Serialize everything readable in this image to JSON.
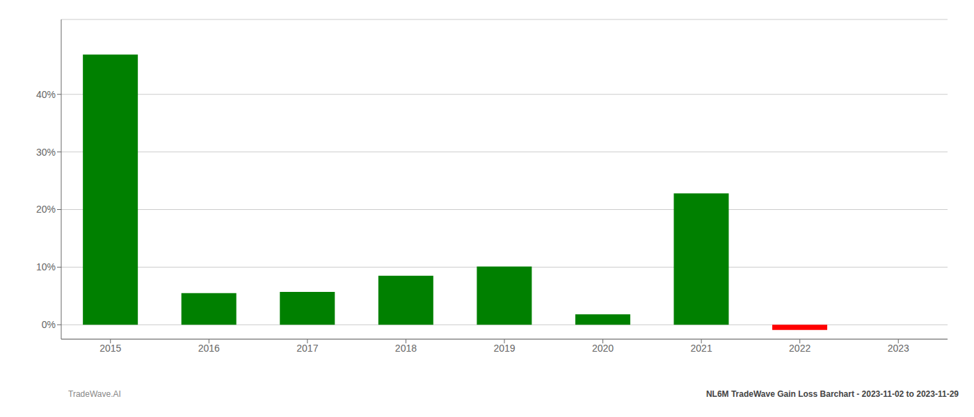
{
  "chart_data": {
    "type": "bar",
    "categories": [
      "2015",
      "2016",
      "2017",
      "2018",
      "2019",
      "2020",
      "2021",
      "2022",
      "2023"
    ],
    "values": [
      0.469,
      0.055,
      0.057,
      0.085,
      0.101,
      0.018,
      0.228,
      -0.009,
      0.0
    ],
    "colors": [
      "#008000",
      "#008000",
      "#008000",
      "#008000",
      "#008000",
      "#008000",
      "#008000",
      "#ff0000",
      "#008000"
    ],
    "ylim": [
      -0.025,
      0.53
    ],
    "yticks": [
      {
        "value": 0.0,
        "label": "0%"
      },
      {
        "value": 0.1,
        "label": "10%"
      },
      {
        "value": 0.2,
        "label": "20%"
      },
      {
        "value": 0.3,
        "label": "30%"
      },
      {
        "value": 0.4,
        "label": "40%"
      }
    ],
    "grid": true,
    "annotations": [
      "TradeWave.AI",
      "NL6M TradeWave Gain Loss Barchart - 2023-11-02 to 2023-11-29"
    ]
  }
}
